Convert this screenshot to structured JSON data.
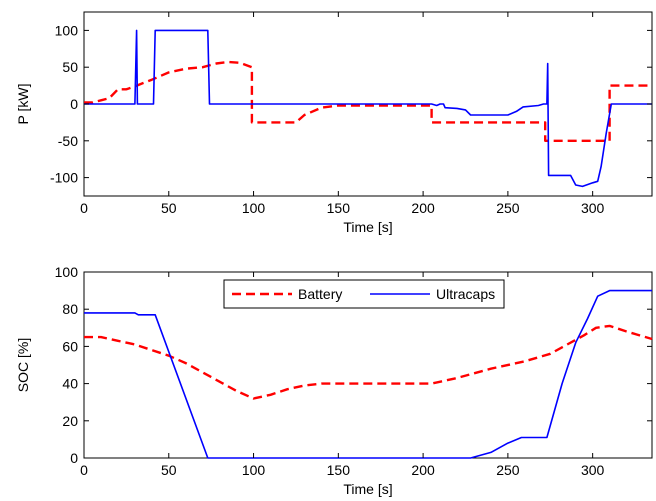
{
  "chart_data": [
    {
      "type": "line",
      "xlabel": "Time [s]",
      "ylabel": "P [kW]",
      "xlim": [
        0,
        335
      ],
      "ylim": [
        -125,
        125
      ],
      "xticks": [
        0,
        50,
        100,
        150,
        200,
        250,
        300
      ],
      "yticks": [
        -100,
        -50,
        0,
        50,
        100
      ],
      "grid": false,
      "series": [
        {
          "key": "battery",
          "color": "#ff0000",
          "style": "dashed",
          "points": [
            [
              0,
              2
            ],
            [
              5,
              2
            ],
            [
              10,
              5
            ],
            [
              15,
              8
            ],
            [
              20,
              20
            ],
            [
              25,
              20
            ],
            [
              30,
              24
            ],
            [
              40,
              33
            ],
            [
              50,
              43
            ],
            [
              60,
              48
            ],
            [
              70,
              50
            ],
            [
              78,
              55
            ],
            [
              85,
              57
            ],
            [
              92,
              56
            ],
            [
              99,
              50
            ],
            [
              99,
              -25
            ],
            [
              125,
              -25
            ],
            [
              130,
              -15
            ],
            [
              140,
              -5
            ],
            [
              150,
              -2
            ],
            [
              205,
              -2
            ],
            [
              205,
              -25
            ],
            [
              272,
              -25
            ],
            [
              272,
              -50
            ],
            [
              310,
              -50
            ],
            [
              310,
              25
            ],
            [
              335,
              25
            ]
          ]
        },
        {
          "key": "ultracaps",
          "color": "#0000ff",
          "style": "solid",
          "points": [
            [
              0,
              0
            ],
            [
              30,
              0
            ],
            [
              31,
              100
            ],
            [
              31.5,
              0
            ],
            [
              41,
              0
            ],
            [
              42,
              100
            ],
            [
              73,
              100
            ],
            [
              74,
              0
            ],
            [
              152,
              0
            ],
            [
              205,
              0
            ],
            [
              208,
              -2
            ],
            [
              210,
              0
            ],
            [
              212,
              0
            ],
            [
              213,
              -5
            ],
            [
              220,
              -6
            ],
            [
              225,
              -8
            ],
            [
              228,
              -15
            ],
            [
              250,
              -15
            ],
            [
              255,
              -10
            ],
            [
              259,
              -4
            ],
            [
              268,
              -2
            ],
            [
              271,
              0
            ],
            [
              273,
              0
            ],
            [
              273.5,
              55
            ],
            [
              274,
              -97
            ],
            [
              278,
              -97
            ],
            [
              280,
              -97
            ],
            [
              287,
              -97
            ],
            [
              290,
              -110
            ],
            [
              294,
              -112
            ],
            [
              300,
              -107
            ],
            [
              303,
              -105
            ],
            [
              305,
              -85
            ],
            [
              308,
              -40
            ],
            [
              311,
              0
            ],
            [
              335,
              0
            ]
          ]
        }
      ]
    },
    {
      "type": "line",
      "xlabel": "Time [s]",
      "ylabel": "SOC [%]",
      "xlim": [
        0,
        335
      ],
      "ylim": [
        0,
        100
      ],
      "xticks": [
        0,
        50,
        100,
        150,
        200,
        250,
        300
      ],
      "yticks": [
        0,
        20,
        40,
        60,
        80,
        100
      ],
      "grid": false,
      "legend": {
        "position": "top-center",
        "entries": [
          "Battery",
          "Ultracaps"
        ]
      },
      "series": [
        {
          "key": "battery",
          "name": "Battery",
          "color": "#ff0000",
          "style": "dashed",
          "points": [
            [
              0,
              65
            ],
            [
              10,
              65
            ],
            [
              20,
              63
            ],
            [
              30,
              61
            ],
            [
              40,
              58
            ],
            [
              50,
              55
            ],
            [
              60,
              51
            ],
            [
              70,
              46
            ],
            [
              80,
              41
            ],
            [
              90,
              36
            ],
            [
              100,
              32
            ],
            [
              110,
              34
            ],
            [
              120,
              37
            ],
            [
              130,
              39
            ],
            [
              140,
              40
            ],
            [
              150,
              40
            ],
            [
              170,
              40
            ],
            [
              205,
              40
            ],
            [
              220,
              43
            ],
            [
              240,
              48
            ],
            [
              260,
              52
            ],
            [
              275,
              56
            ],
            [
              285,
              61
            ],
            [
              295,
              66
            ],
            [
              302,
              70
            ],
            [
              310,
              71
            ],
            [
              320,
              68
            ],
            [
              335,
              64
            ]
          ]
        },
        {
          "key": "ultracaps",
          "name": "Ultracaps",
          "color": "#0000ff",
          "style": "solid",
          "points": [
            [
              0,
              78
            ],
            [
              30,
              78
            ],
            [
              32,
              77
            ],
            [
              42,
              77
            ],
            [
              73,
              0
            ],
            [
              228,
              0
            ],
            [
              240,
              3
            ],
            [
              250,
              8
            ],
            [
              258,
              11
            ],
            [
              273,
              11
            ],
            [
              282,
              40
            ],
            [
              290,
              62
            ],
            [
              297,
              75
            ],
            [
              303,
              87
            ],
            [
              310,
              90
            ],
            [
              335,
              90
            ]
          ]
        }
      ]
    }
  ]
}
